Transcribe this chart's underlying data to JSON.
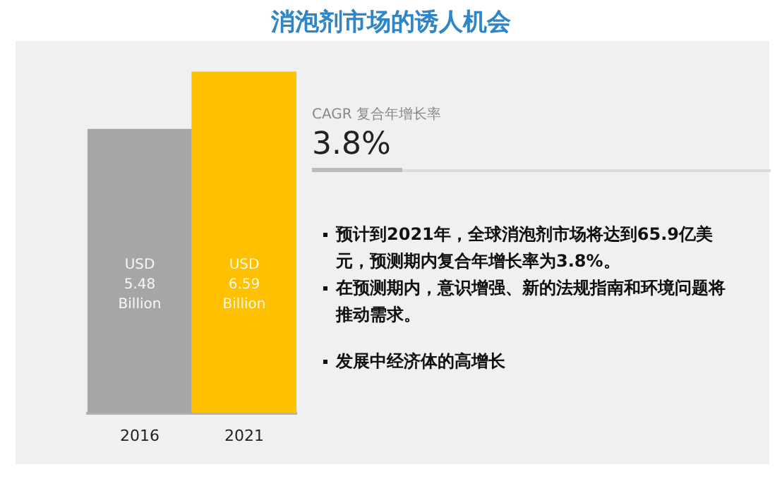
{
  "chart_data": {
    "type": "bar",
    "title": "消泡剂市场的诱人机会",
    "categories": [
      "2016",
      "2021"
    ],
    "values": [
      5.48,
      6.59
    ],
    "colors": [
      "#a6a6a6",
      "#ffc000"
    ],
    "value_labels": [
      "USD 5.48 Billion",
      "USD 6.59 Billion"
    ],
    "tick_labels": "x",
    "grid": false,
    "legend": false,
    "annotations": [
      "CAGR 复合年增长率",
      "3.8%",
      "预计到2021年，全球消泡剂市场将达到65.9亿美元，预测期内复合年增长率为3.8%。",
      "在预测期内，意识增强、新的法规指南和环境问题将推动需求。",
      "发展中经济体的高增长"
    ]
  }
}
